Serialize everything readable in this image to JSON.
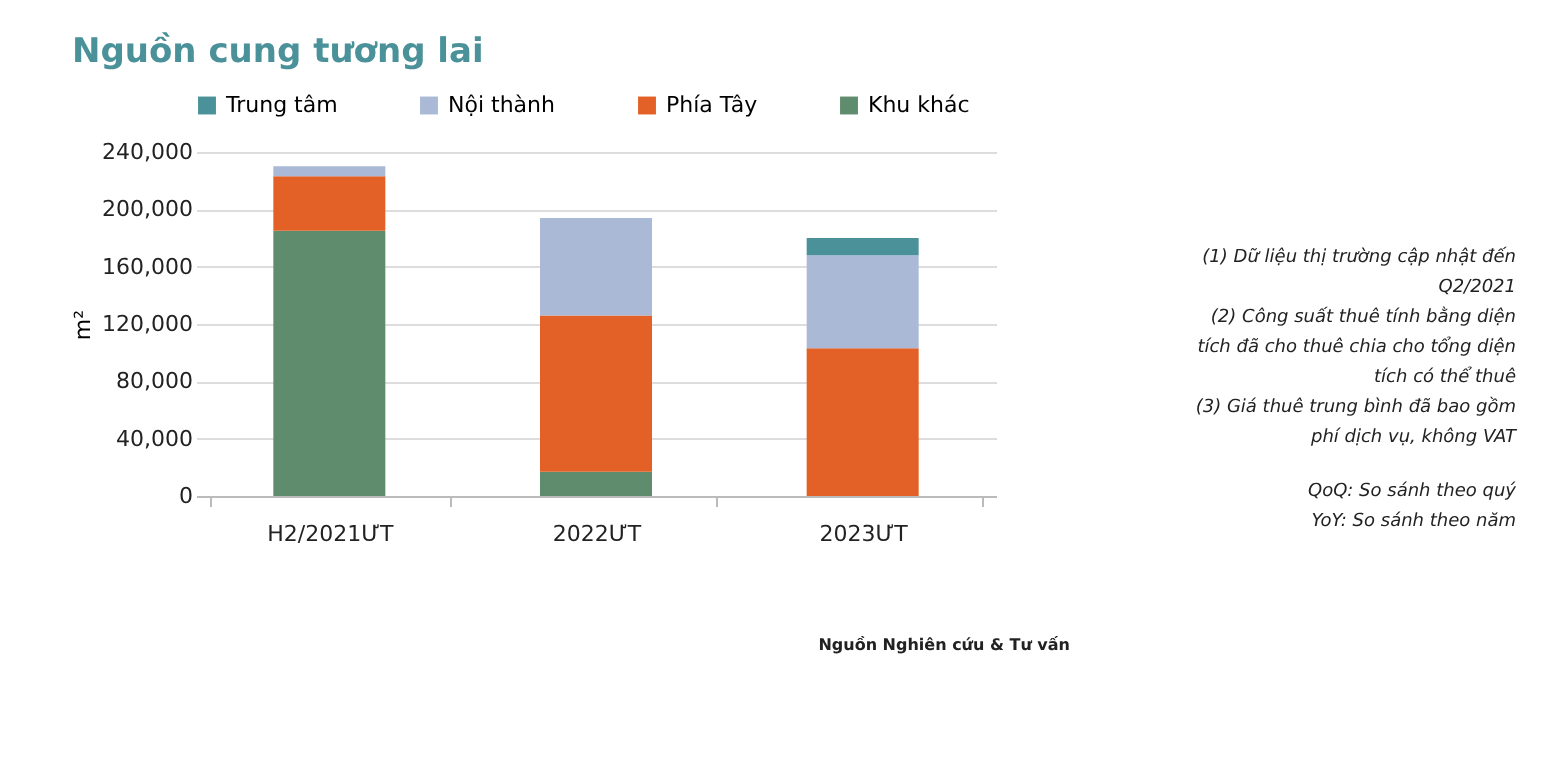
{
  "chart_data": {
    "type": "bar",
    "stacked": true,
    "title": "Nguồn cung tương lai",
    "ylabel": "m²",
    "categories": [
      "H2/2021ƯT",
      "2022ƯT",
      "2023ƯT"
    ],
    "series": [
      {
        "name": "Khu khác",
        "color": "#5e8c6c",
        "values": [
          185000,
          17000,
          null
        ]
      },
      {
        "name": "Phía Tây",
        "color": "#e36126",
        "values": [
          38000,
          109000,
          103000
        ]
      },
      {
        "name": "Nội thành",
        "color": "#a9b9d6",
        "values": [
          7000,
          68000,
          65000
        ]
      },
      {
        "name": "Trung tâm",
        "color": "#4a9199",
        "values": [
          null,
          null,
          12000
        ]
      }
    ],
    "ylim": [
      0,
      240000
    ],
    "yticks": [
      0,
      {
        "value": 40000,
        "label": "40,000"
      },
      {
        "value": 80000,
        "label": "80,000"
      },
      {
        "value": 120000,
        "label": "120,000"
      },
      {
        "value": 160000,
        "label": "160,000"
      },
      {
        "value": 200000,
        "label": "200,000"
      },
      {
        "value": 240000,
        "label": "240,000"
      }
    ],
    "grid": "y",
    "legend": "top",
    "annotations": [
      "(1) Dữ liệu thị trường cập nhật đến Q2/2021",
      "(2) Công suất thuê tính bằng diện tích đã cho thuê chia cho tổng diện tích có thể thuê",
      "(3) Giá thuê trung bình đã bao gồm phí dịch vụ, không VAT",
      "QoQ: So sánh theo quý",
      "YoY: So sánh theo năm",
      "Nguồn Nghiên cứu & Tư vấn"
    ]
  }
}
